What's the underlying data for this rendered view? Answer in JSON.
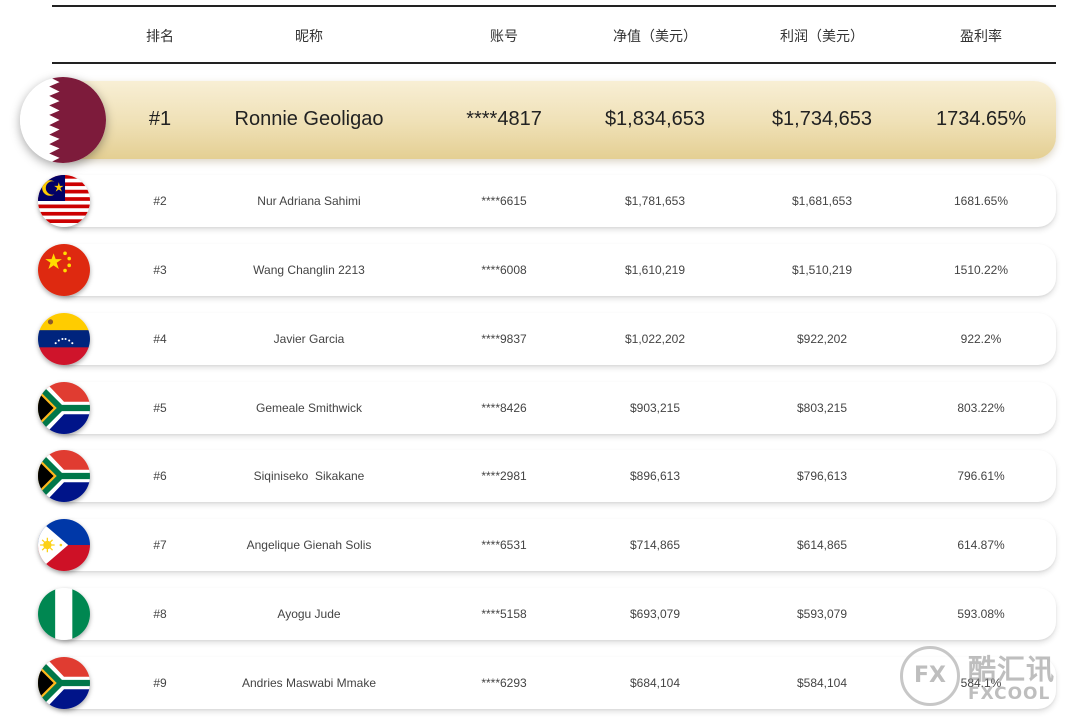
{
  "header": {
    "rank": "排名",
    "nickname": "昵称",
    "account": "账号",
    "net_value": "净值（美元）",
    "profit": "利润（美元）",
    "profit_rate": "盈利率"
  },
  "rows": [
    {
      "rank": "#1",
      "nickname": "Ronnie Geoligao",
      "account": "****4817",
      "net_value": "$1,834,653",
      "profit": "$1,734,653",
      "rate": "1734.65%",
      "flag": "qatar-flag-icon"
    },
    {
      "rank": "#2",
      "nickname": "Nur Adriana Sahimi",
      "account": "****6615",
      "net_value": "$1,781,653",
      "profit": "$1,681,653",
      "rate": "1681.65%",
      "flag": "malaysia-flag-icon"
    },
    {
      "rank": "#3",
      "nickname": "Wang Changlin 2213",
      "account": "****6008",
      "net_value": "$1,610,219",
      "profit": "$1,510,219",
      "rate": "1510.22%",
      "flag": "china-flag-icon"
    },
    {
      "rank": "#4",
      "nickname": "Javier Garcia",
      "account": "****9837",
      "net_value": "$1,022,202",
      "profit": "$922,202",
      "rate": "922.2%",
      "flag": "venezuela-flag-icon"
    },
    {
      "rank": "#5",
      "nickname": "Gemeale Smithwick",
      "account": "****8426",
      "net_value": "$903,215",
      "profit": "$803,215",
      "rate": "803.22%",
      "flag": "south-africa-flag-icon"
    },
    {
      "rank": "#6",
      "nickname": "Siqiniseko  Sikakane",
      "account": "****2981",
      "net_value": "$896,613",
      "profit": "$796,613",
      "rate": "796.61%",
      "flag": "south-africa-flag-icon"
    },
    {
      "rank": "#7",
      "nickname": "Angelique Gienah Solis",
      "account": "****6531",
      "net_value": "$714,865",
      "profit": "$614,865",
      "rate": "614.87%",
      "flag": "philippines-flag-icon"
    },
    {
      "rank": "#8",
      "nickname": "Ayogu Jude",
      "account": "****5158",
      "net_value": "$693,079",
      "profit": "$593,079",
      "rate": "593.08%",
      "flag": "nigeria-flag-icon"
    },
    {
      "rank": "#9",
      "nickname": "Andries Maswabi Mmake",
      "account": "****6293",
      "net_value": "$684,104",
      "profit": "$584,104",
      "rate": "584.1%",
      "flag": "south-africa-flag-icon"
    }
  ],
  "watermark": {
    "logo": "FX",
    "chinese": "酷汇讯",
    "english": "FXCOOL"
  }
}
